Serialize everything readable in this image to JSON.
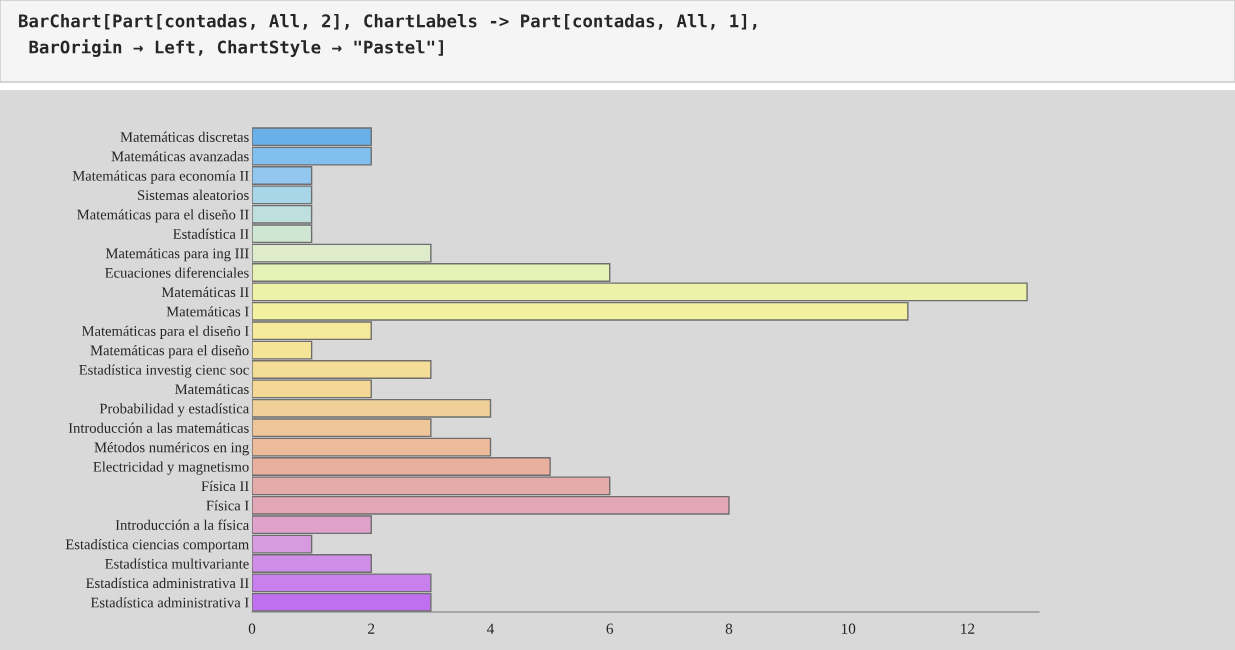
{
  "chart_data": {
    "type": "bar",
    "orientation": "horizontal",
    "title": "BarChart[Part[contadas, All, 2], ChartLabels -> Part[contadas, All, 1],\n BarOrigin → Left, ChartStyle → \"Pastel\"]",
    "categories": [
      "Matemáticas discretas",
      "Matemáticas avanzadas",
      "Matemáticas para economía II",
      "Sistemas aleatorios",
      "Matemáticas para el diseño II",
      "Estadística II",
      "Matemáticas para ing III",
      "Ecuaciones diferenciales",
      "Matemáticas II",
      "Matemáticas I",
      "Matemáticas para el diseño I",
      "Matemáticas para el diseño",
      "Estadística investig cienc soc",
      "Matemáticas",
      "Probabilidad y estadística",
      "Introducción a las matemáticas",
      "Métodos numéricos en ing",
      "Electricidad y magnetismo",
      "Física II",
      "Física I",
      "Introducción a la física",
      "Estadística ciencias comportam",
      "Estadística multivariante",
      "Estadística administrativa II",
      "Estadística administrativa I"
    ],
    "values": [
      2,
      2,
      1,
      1,
      1,
      1,
      3,
      6,
      13,
      11,
      2,
      1,
      3,
      2,
      4,
      3,
      4,
      5,
      6,
      8,
      2,
      1,
      2,
      3,
      3
    ],
    "colors": [
      "#6ab0e8",
      "#80bfee",
      "#92c8f0",
      "#a8d6e8",
      "#bde0df",
      "#cfe6d2",
      "#dfeccb",
      "#e6f2b5",
      "#eef2a8",
      "#f3f0a0",
      "#f5ea9c",
      "#f5e396",
      "#f4dd96",
      "#f3d896",
      "#f0d098",
      "#efc59a",
      "#edbb9a",
      "#e9b09f",
      "#e5aaaa",
      "#e2a6b6",
      "#dea2cb",
      "#d89ade",
      "#d08ee8",
      "#c880ee",
      "#c070ee"
    ],
    "xlim": [
      0,
      13.2
    ],
    "xticks": [
      0,
      2,
      4,
      6,
      8,
      10,
      12
    ],
    "grid": false,
    "legend": false
  }
}
